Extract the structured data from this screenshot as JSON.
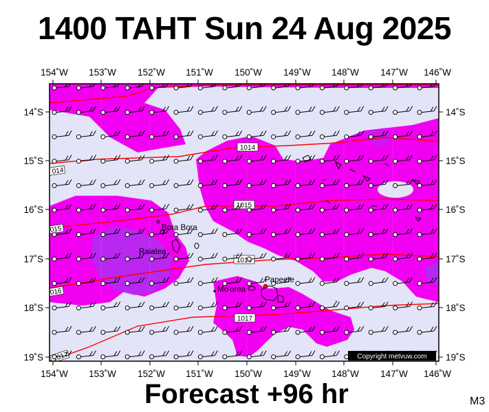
{
  "title": "1400 TAHT Sun 24 Aug 2025",
  "footer": "Forecast +96 hr",
  "model_tag": "M3",
  "copyright": "Copyright metvuw.com",
  "longitude_labels": [
    "154˚W",
    "153˚W",
    "152˚W",
    "151˚W",
    "150˚W",
    "149˚W",
    "148˚W",
    "147˚W",
    "146˚W"
  ],
  "latitude_labels": [
    "14˚S",
    "15˚S",
    "16˚S",
    "17˚S",
    "18˚S",
    "19˚S"
  ],
  "map_extent": {
    "lon_west": -154,
    "lon_east": -146,
    "lat_north": -13.45,
    "lat_south": -19.05
  },
  "places": [
    {
      "name": "Bora Bora",
      "lon": -151.74,
      "lat": -16.5
    },
    {
      "name": "Raiatea",
      "lon": -151.45,
      "lat": -16.83
    },
    {
      "name": "Mo'orea",
      "lon": -149.83,
      "lat": -17.53
    },
    {
      "name": "Papeete",
      "lon": -149.57,
      "lat": -17.53
    }
  ],
  "isobars": [
    {
      "label": "1014",
      "unit": "hPa"
    },
    {
      "label": "1015",
      "unit": "hPa"
    },
    {
      "label": "1016",
      "unit": "hPa"
    },
    {
      "label": "1017",
      "unit": "hPa"
    }
  ],
  "colors": {
    "background_sea": "#e4e4f8",
    "precip_light": "#f200f2",
    "precip_heavy": "#9b3cf0",
    "isobar": "#ff0000",
    "wind_barb": "#000000"
  }
}
